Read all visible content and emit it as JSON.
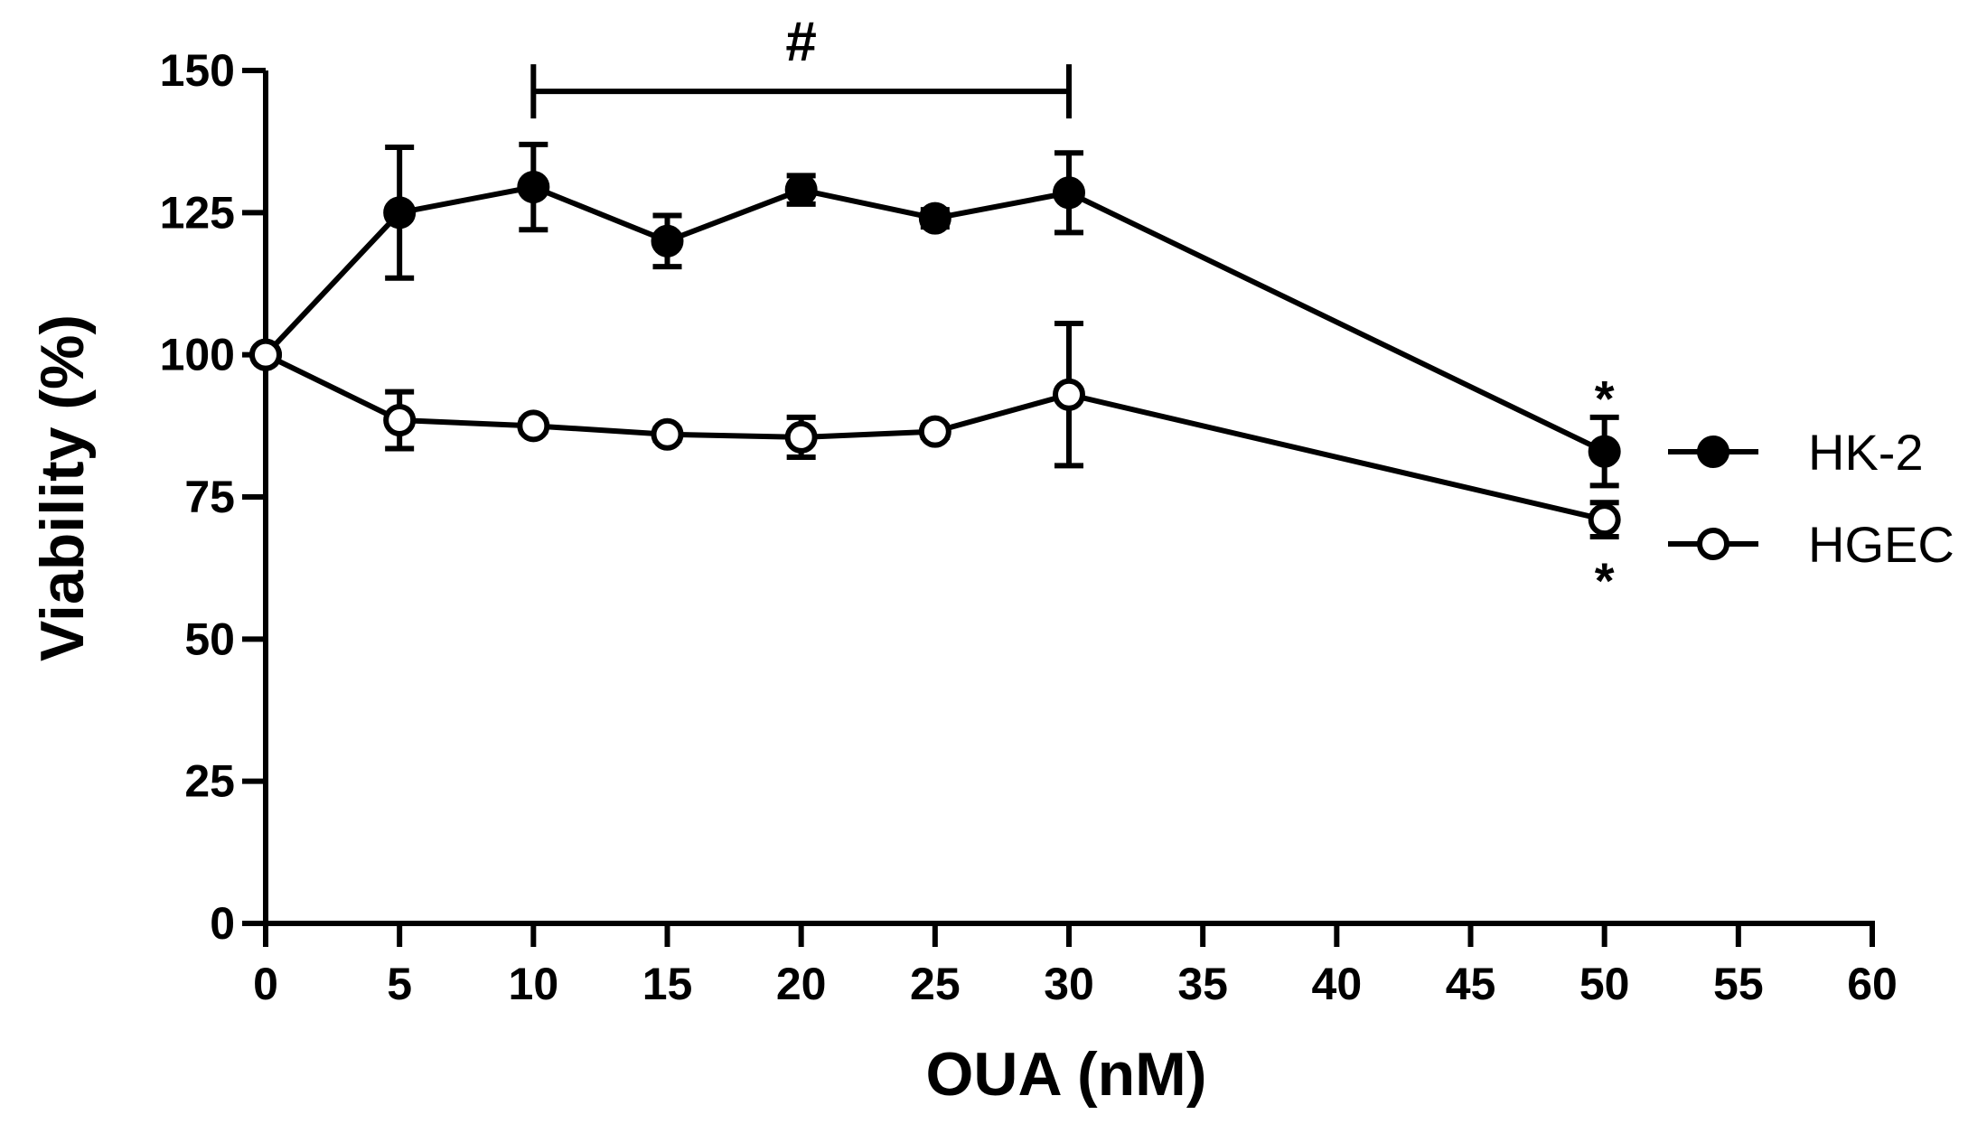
{
  "chart_data": {
    "type": "line",
    "xlabel": "OUA (nM)",
    "ylabel": "Viability (%)",
    "xlim": [
      0,
      60
    ],
    "ylim": [
      0,
      150
    ],
    "x_ticks": [
      0,
      5,
      10,
      15,
      20,
      25,
      30,
      35,
      40,
      45,
      50,
      55,
      60
    ],
    "y_ticks": [
      0,
      25,
      50,
      75,
      100,
      125,
      150
    ],
    "x": [
      0,
      5,
      10,
      15,
      20,
      25,
      30,
      50
    ],
    "series": [
      {
        "name": "HK-2",
        "marker": "filled-circle",
        "values": [
          100,
          125,
          129.5,
          120,
          129,
          124,
          128.5,
          83
        ],
        "errors": [
          0,
          11.5,
          7.5,
          4.5,
          2.5,
          1.5,
          7,
          6
        ]
      },
      {
        "name": "HGEC",
        "marker": "open-circle",
        "values": [
          100,
          88.5,
          87.5,
          86,
          85.5,
          86.5,
          93,
          71
        ],
        "errors": [
          0,
          5,
          1,
          1,
          3.5,
          1,
          12.5,
          3
        ]
      }
    ],
    "significance_bracket": {
      "from": 10,
      "to": 30,
      "y": 146,
      "label": "#"
    },
    "asterisks": [
      {
        "x": 50,
        "y": 93,
        "label": "*"
      },
      {
        "x": 50,
        "y": 61,
        "label": "*"
      }
    ],
    "legend_position": "right"
  }
}
